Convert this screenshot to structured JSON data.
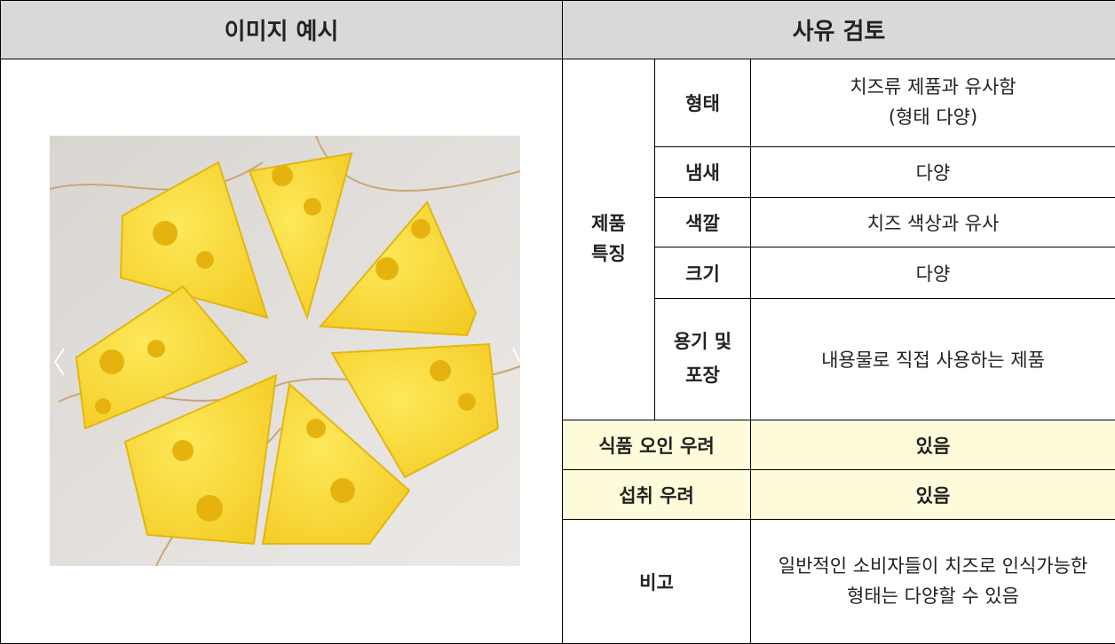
{
  "header": {
    "left": "이미지 예시",
    "right": "사유 검토"
  },
  "features": {
    "label": "제품 특징",
    "rows": [
      {
        "label": "형태",
        "value": "치즈류 제품과 유사함\n(형태 다양)"
      },
      {
        "label": "냄새",
        "value": "다양"
      },
      {
        "label": "색깔",
        "value": "치즈 색상과 유사"
      },
      {
        "label": "크기",
        "value": "다양"
      },
      {
        "label": "용기 및 포장",
        "value": "내용물로 직접 사용하는 제품"
      }
    ]
  },
  "concerns": [
    {
      "label": "식품 오인 우려",
      "value": "있음"
    },
    {
      "label": "섭취 우려",
      "value": "있음"
    }
  ],
  "note": {
    "label": "비고",
    "value": "일반적인 소비자들이 치즈로 인식가능한 형태는 다양할 수 있음"
  }
}
